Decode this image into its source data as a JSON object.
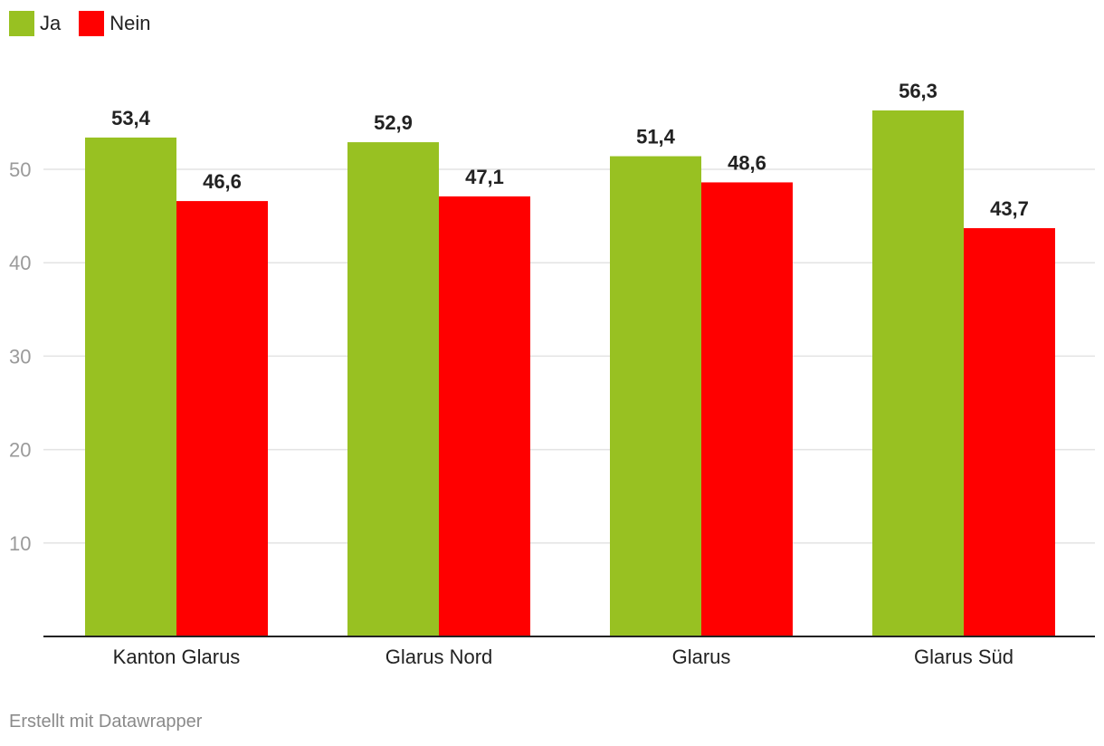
{
  "chart_data": {
    "type": "bar",
    "categories": [
      "Kanton Glarus",
      "Glarus Nord",
      "Glarus",
      "Glarus Süd"
    ],
    "series": [
      {
        "name": "Ja",
        "values": [
          53.4,
          52.9,
          51.4,
          56.3
        ],
        "labels": [
          "53,4",
          "52,9",
          "51,4",
          "56,3"
        ],
        "color": "#98c122"
      },
      {
        "name": "Nein",
        "values": [
          46.6,
          47.1,
          48.6,
          43.7
        ],
        "labels": [
          "46,6",
          "47,1",
          "48,6",
          "43,7"
        ],
        "color": "#ff0000"
      }
    ],
    "yticks": [
      10,
      20,
      30,
      40,
      50
    ],
    "ylim": [
      0,
      60
    ],
    "grid": true,
    "legend_position": "top-left"
  },
  "footer": "Erstellt mit Datawrapper"
}
